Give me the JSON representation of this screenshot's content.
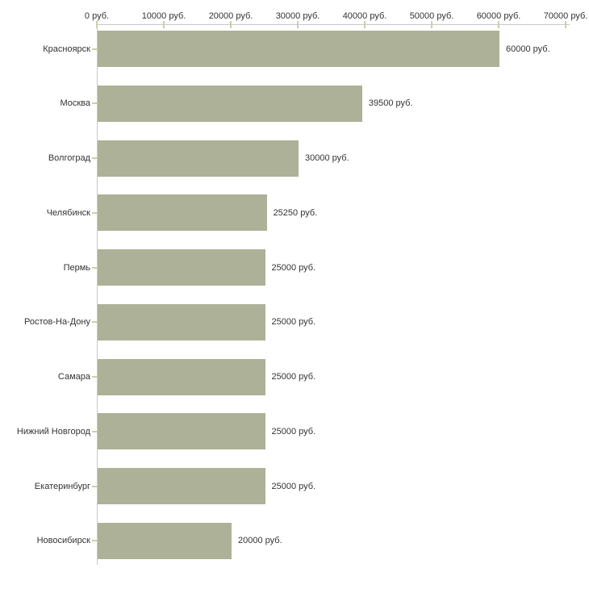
{
  "chart_data": {
    "type": "bar",
    "orientation": "horizontal",
    "title": "",
    "xlabel": "",
    "ylabel": "",
    "xlim": [
      0,
      70000
    ],
    "grid": false,
    "legend": "none",
    "x_axis_position": "top",
    "categories": [
      "Красноярск",
      "Москва",
      "Волгоград",
      "Челябинск",
      "Пермь",
      "Ростов-На-Дону",
      "Самара",
      "Нижний Новгород",
      "Екатеринбург",
      "Новосибирск"
    ],
    "values": [
      60000,
      39500,
      30000,
      25250,
      25000,
      25000,
      25000,
      25000,
      25000,
      20000
    ],
    "value_labels": [
      "60000 руб.",
      "39500 руб.",
      "30000 руб.",
      "25250 руб.",
      "25000 руб.",
      "25000 руб.",
      "25000 руб.",
      "25000 руб.",
      "25000 руб.",
      "20000 руб."
    ],
    "x_ticks": [
      0,
      10000,
      20000,
      30000,
      40000,
      50000,
      60000,
      70000
    ],
    "x_tick_labels": [
      "0 руб.",
      "10000 руб.",
      "20000 руб.",
      "30000 руб.",
      "40000 руб.",
      "50000 руб.",
      "60000 руб.",
      "70000 руб."
    ]
  },
  "colors": {
    "bar": "#adb197",
    "axis_line": "#c8c8c8",
    "tick_mark": "#cfcfa4",
    "text": "#333333",
    "background": "#ffffff"
  }
}
